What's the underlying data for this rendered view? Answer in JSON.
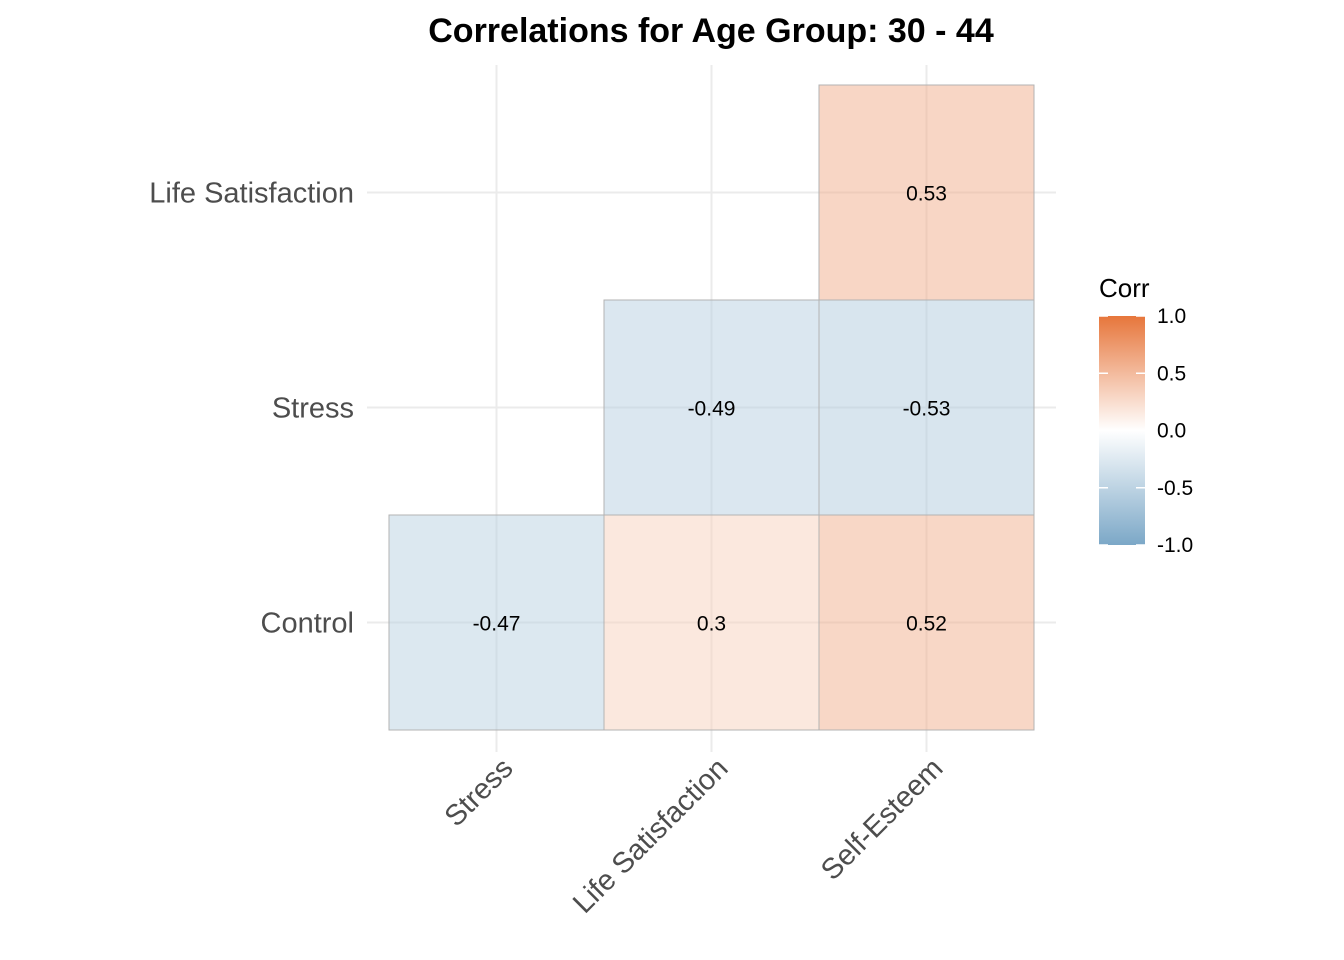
{
  "chart_data": {
    "type": "heatmap",
    "title": "Correlations for Age Group: 30 - 44",
    "x_categories": [
      "Stress",
      "Life Satisfaction",
      "Self-Esteem"
    ],
    "y_categories": [
      "Control",
      "Stress",
      "Life Satisfaction"
    ],
    "cells": [
      {
        "x": "Stress",
        "y": "Control",
        "value": -0.47,
        "label": "-0.47"
      },
      {
        "x": "Life Satisfaction",
        "y": "Control",
        "value": 0.3,
        "label": "0.3"
      },
      {
        "x": "Self-Esteem",
        "y": "Control",
        "value": 0.52,
        "label": "0.52"
      },
      {
        "x": "Life Satisfaction",
        "y": "Stress",
        "value": -0.49,
        "label": "-0.49"
      },
      {
        "x": "Self-Esteem",
        "y": "Stress",
        "value": -0.53,
        "label": "-0.53"
      },
      {
        "x": "Self-Esteem",
        "y": "Life Satisfaction",
        "value": 0.53,
        "label": "0.53"
      }
    ],
    "legend": {
      "title": "Corr",
      "ticks": [
        "1.0",
        "0.5",
        "0.0",
        "-0.5",
        "-1.0"
      ],
      "limits": [
        -1,
        1
      ],
      "colors": {
        "low": "#6D9EC1",
        "mid": "#FFFFFF",
        "high": "#E46726"
      }
    },
    "grid": true,
    "legend_position": "right"
  }
}
